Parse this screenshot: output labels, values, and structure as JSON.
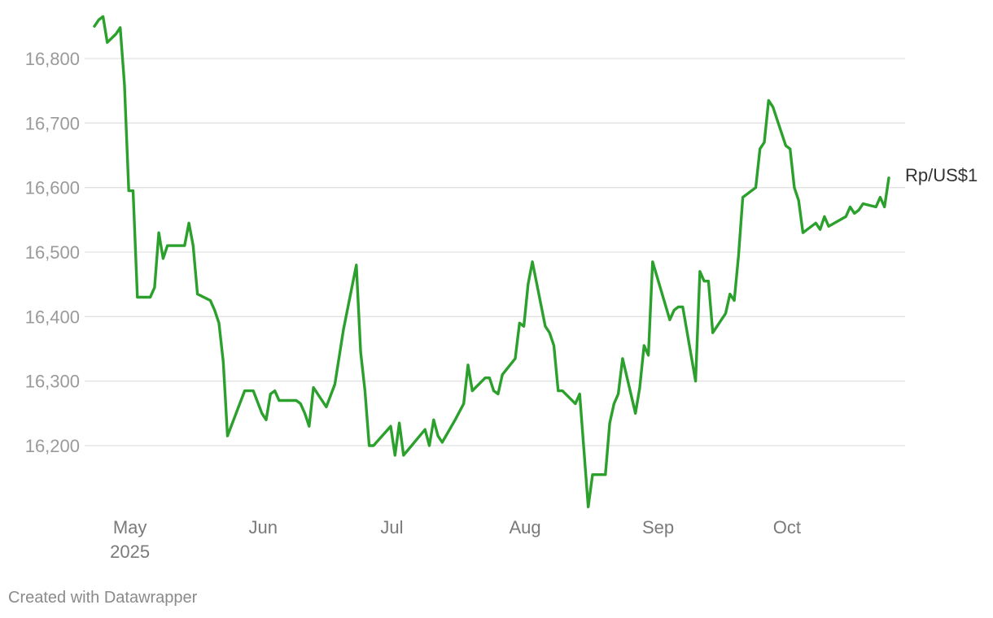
{
  "chart_data": {
    "type": "line",
    "title": "",
    "xlabel": "",
    "ylabel": "",
    "ylim": [
      16100,
      16870
    ],
    "y_ticks": [
      16800,
      16700,
      16600,
      16500,
      16400,
      16300,
      16200
    ],
    "y_tick_labels": [
      "16,800",
      "16,700",
      "16,600",
      "16,500",
      "16,400",
      "16,300",
      "16,200"
    ],
    "x_range": [
      "2025-04-22",
      "2025-10-27"
    ],
    "x_ticks": [
      {
        "date": "2025-05-01",
        "label": "May",
        "sublabel": "2025"
      },
      {
        "date": "2025-06-01",
        "label": "Jun",
        "sublabel": ""
      },
      {
        "date": "2025-07-01",
        "label": "Jul",
        "sublabel": ""
      },
      {
        "date": "2025-08-01",
        "label": "Aug",
        "sublabel": ""
      },
      {
        "date": "2025-09-01",
        "label": "Sep",
        "sublabel": ""
      },
      {
        "date": "2025-10-01",
        "label": "Oct",
        "sublabel": ""
      }
    ],
    "grid": true,
    "series": [
      {
        "name": "Rp/US$1",
        "color": "#2ca02c",
        "points": [
          [
            "2025-04-25",
            16850
          ],
          [
            "2025-04-26",
            16860
          ],
          [
            "2025-04-27",
            16865
          ],
          [
            "2025-04-28",
            16825
          ],
          [
            "2025-04-30",
            16838
          ],
          [
            "2025-05-01",
            16848
          ],
          [
            "2025-05-02",
            16760
          ],
          [
            "2025-05-03",
            16595
          ],
          [
            "2025-05-04",
            16595
          ],
          [
            "2025-05-05",
            16430
          ],
          [
            "2025-05-08",
            16430
          ],
          [
            "2025-05-09",
            16445
          ],
          [
            "2025-05-10",
            16530
          ],
          [
            "2025-05-11",
            16490
          ],
          [
            "2025-05-12",
            16510
          ],
          [
            "2025-05-16",
            16510
          ],
          [
            "2025-05-17",
            16545
          ],
          [
            "2025-05-18",
            16510
          ],
          [
            "2025-05-19",
            16435
          ],
          [
            "2025-05-22",
            16425
          ],
          [
            "2025-05-23",
            16410
          ],
          [
            "2025-05-24",
            16390
          ],
          [
            "2025-05-25",
            16330
          ],
          [
            "2025-05-26",
            16215
          ],
          [
            "2025-05-30",
            16285
          ],
          [
            "2025-06-01",
            16285
          ],
          [
            "2025-06-03",
            16250
          ],
          [
            "2025-06-04",
            16240
          ],
          [
            "2025-06-05",
            16280
          ],
          [
            "2025-06-06",
            16285
          ],
          [
            "2025-06-07",
            16270
          ],
          [
            "2025-06-11",
            16270
          ],
          [
            "2025-06-12",
            16265
          ],
          [
            "2025-06-13",
            16250
          ],
          [
            "2025-06-14",
            16230
          ],
          [
            "2025-06-15",
            16290
          ],
          [
            "2025-06-18",
            16260
          ],
          [
            "2025-06-20",
            16295
          ],
          [
            "2025-06-22",
            16380
          ],
          [
            "2025-06-25",
            16480
          ],
          [
            "2025-06-26",
            16345
          ],
          [
            "2025-06-27",
            16285
          ],
          [
            "2025-06-28",
            16200
          ],
          [
            "2025-06-29",
            16200
          ],
          [
            "2025-07-03",
            16230
          ],
          [
            "2025-07-04",
            16185
          ],
          [
            "2025-07-05",
            16235
          ],
          [
            "2025-07-06",
            16185
          ],
          [
            "2025-07-11",
            16225
          ],
          [
            "2025-07-12",
            16200
          ],
          [
            "2025-07-13",
            16240
          ],
          [
            "2025-07-14",
            16215
          ],
          [
            "2025-07-15",
            16205
          ],
          [
            "2025-07-18",
            16240
          ],
          [
            "2025-07-20",
            16265
          ],
          [
            "2025-07-21",
            16325
          ],
          [
            "2025-07-22",
            16285
          ],
          [
            "2025-07-25",
            16305
          ],
          [
            "2025-07-26",
            16305
          ],
          [
            "2025-07-27",
            16285
          ],
          [
            "2025-07-28",
            16280
          ],
          [
            "2025-07-29",
            16310
          ],
          [
            "2025-08-01",
            16335
          ],
          [
            "2025-08-02",
            16390
          ],
          [
            "2025-08-03",
            16385
          ],
          [
            "2025-08-04",
            16450
          ],
          [
            "2025-08-05",
            16485
          ],
          [
            "2025-08-08",
            16385
          ],
          [
            "2025-08-09",
            16375
          ],
          [
            "2025-08-10",
            16355
          ],
          [
            "2025-08-11",
            16285
          ],
          [
            "2025-08-12",
            16285
          ],
          [
            "2025-08-15",
            16265
          ],
          [
            "2025-08-16",
            16280
          ],
          [
            "2025-08-18",
            16105
          ],
          [
            "2025-08-19",
            16155
          ],
          [
            "2025-08-22",
            16155
          ],
          [
            "2025-08-23",
            16235
          ],
          [
            "2025-08-24",
            16265
          ],
          [
            "2025-08-25",
            16280
          ],
          [
            "2025-08-26",
            16335
          ],
          [
            "2025-08-29",
            16250
          ],
          [
            "2025-08-30",
            16290
          ],
          [
            "2025-08-31",
            16355
          ],
          [
            "2025-09-01",
            16340
          ],
          [
            "2025-09-02",
            16485
          ],
          [
            "2025-09-06",
            16395
          ],
          [
            "2025-09-07",
            16410
          ],
          [
            "2025-09-08",
            16415
          ],
          [
            "2025-09-09",
            16415
          ],
          [
            "2025-09-12",
            16300
          ],
          [
            "2025-09-13",
            16470
          ],
          [
            "2025-09-14",
            16455
          ],
          [
            "2025-09-15",
            16455
          ],
          [
            "2025-09-16",
            16375
          ],
          [
            "2025-09-19",
            16405
          ],
          [
            "2025-09-20",
            16435
          ],
          [
            "2025-09-21",
            16425
          ],
          [
            "2025-09-22",
            16495
          ],
          [
            "2025-09-23",
            16585
          ],
          [
            "2025-09-26",
            16600
          ],
          [
            "2025-09-27",
            16660
          ],
          [
            "2025-09-28",
            16670
          ],
          [
            "2025-09-29",
            16735
          ],
          [
            "2025-09-30",
            16725
          ],
          [
            "2025-10-03",
            16665
          ],
          [
            "2025-10-04",
            16660
          ],
          [
            "2025-10-05",
            16600
          ],
          [
            "2025-10-06",
            16580
          ],
          [
            "2025-10-07",
            16530
          ],
          [
            "2025-10-10",
            16545
          ],
          [
            "2025-10-11",
            16535
          ],
          [
            "2025-10-12",
            16555
          ],
          [
            "2025-10-13",
            16540
          ],
          [
            "2025-10-17",
            16555
          ],
          [
            "2025-10-18",
            16570
          ],
          [
            "2025-10-19",
            16560
          ],
          [
            "2025-10-20",
            16565
          ],
          [
            "2025-10-21",
            16575
          ],
          [
            "2025-10-24",
            16570
          ],
          [
            "2025-10-25",
            16585
          ],
          [
            "2025-10-26",
            16570
          ],
          [
            "2025-10-27",
            16615
          ]
        ]
      }
    ]
  },
  "footer": {
    "credit": "Created with Datawrapper"
  }
}
